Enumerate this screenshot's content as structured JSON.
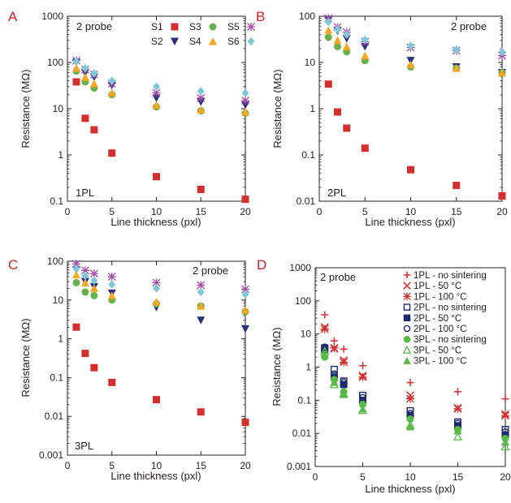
{
  "colors": {
    "S1": "#d32f2f",
    "S2": "#2b2f7a",
    "S3": "#6ab04c",
    "S4": "#f5a623",
    "S5": "#a64ca6",
    "S6": "#7fc8d8",
    "red": "#d32f2f",
    "navy": "#1f2a6e",
    "green": "#58b947"
  },
  "chart_data": [
    {
      "panel": "A",
      "type": "scatter",
      "annotation": "2 probe",
      "tag": "1PL",
      "xlabel": "Line thickness (pxl)",
      "ylabel": "Resistance (MΩ)",
      "xlim": [
        0,
        20
      ],
      "ylim": [
        0.1,
        1000
      ],
      "yscale": "log",
      "xticks": [
        "0",
        "5",
        "10",
        "15",
        "20"
      ],
      "yticks": [
        "0.1",
        "1",
        "10",
        "100",
        "1000"
      ],
      "x": [
        1,
        2,
        3,
        5,
        10,
        15,
        20
      ],
      "series": [
        {
          "name": "S1",
          "marker": "square",
          "values": [
            38,
            6.2,
            3.5,
            1.1,
            0.34,
            0.18,
            0.11
          ]
        },
        {
          "name": "S2",
          "marker": "triangle-down",
          "values": [
            100,
            60,
            48,
            32,
            17,
            14,
            12
          ]
        },
        {
          "name": "S3",
          "marker": "circle",
          "values": [
            65,
            38,
            28,
            20,
            11,
            9,
            8
          ]
        },
        {
          "name": "S4",
          "marker": "triangle-up",
          "values": [
            75,
            48,
            35,
            22,
            12,
            9.5,
            8.5
          ]
        },
        {
          "name": "S5",
          "marker": "asterisk",
          "values": [
            110,
            70,
            55,
            35,
            22,
            17,
            15
          ]
        },
        {
          "name": "S6",
          "marker": "diamond",
          "values": [
            105,
            75,
            58,
            40,
            30,
            24,
            22
          ]
        }
      ]
    },
    {
      "panel": "B",
      "type": "scatter",
      "annotation": "2 probe",
      "tag": "2PL",
      "xlabel": "Line thickness (pxl)",
      "ylabel": "Resistance (MΩ)",
      "xlim": [
        0,
        20
      ],
      "ylim": [
        0.01,
        100
      ],
      "yscale": "log",
      "xticks": [
        "0",
        "5",
        "10",
        "15",
        "20"
      ],
      "yticks": [
        "0.01",
        "0.1",
        "1",
        "10",
        "100"
      ],
      "x": [
        1,
        2,
        3,
        5,
        10,
        15,
        20
      ],
      "series": [
        {
          "name": "S1",
          "marker": "square",
          "values": [
            3.4,
            0.85,
            0.38,
            0.14,
            0.048,
            0.022,
            0.013
          ]
        },
        {
          "name": "S2",
          "marker": "triangle-down",
          "values": [
            85,
            48,
            33,
            22,
            11,
            8,
            6
          ]
        },
        {
          "name": "S3",
          "marker": "circle",
          "values": [
            35,
            22,
            17,
            11,
            8,
            7.5,
            6
          ]
        },
        {
          "name": "S4",
          "marker": "triangle-up",
          "values": [
            50,
            30,
            22,
            14,
            9,
            7.5,
            6
          ]
        },
        {
          "name": "S5",
          "marker": "asterisk",
          "values": [
            90,
            58,
            45,
            28,
            21,
            18,
            14
          ]
        },
        {
          "name": "S6",
          "marker": "diamond",
          "values": [
            75,
            52,
            40,
            31,
            23,
            19,
            17
          ]
        }
      ]
    },
    {
      "panel": "C",
      "type": "scatter",
      "annotation": "2 probe",
      "tag": "3PL",
      "xlabel": "Line thickness (pxl)",
      "ylabel": "Resistance (MΩ)",
      "xlim": [
        0,
        20
      ],
      "ylim": [
        0.001,
        100
      ],
      "yscale": "log",
      "xticks": [
        "0",
        "5",
        "10",
        "15",
        "20"
      ],
      "yticks": [
        "0.001",
        "0.01",
        "0.1",
        "1",
        "10",
        "100"
      ],
      "x": [
        1,
        2,
        3,
        5,
        10,
        15,
        20
      ],
      "series": [
        {
          "name": "S1",
          "marker": "square",
          "values": [
            2,
            0.42,
            0.18,
            0.075,
            0.027,
            0.013,
            0.007
          ]
        },
        {
          "name": "S2",
          "marker": "triangle-down",
          "values": [
            60,
            30,
            22,
            15,
            6.5,
            3,
            1.8
          ]
        },
        {
          "name": "S3",
          "marker": "circle",
          "values": [
            28,
            16,
            13,
            10,
            8,
            7,
            5
          ]
        },
        {
          "name": "S4",
          "marker": "triangle-up",
          "values": [
            45,
            28,
            20,
            13,
            9,
            7,
            5.5
          ]
        },
        {
          "name": "S5",
          "marker": "asterisk",
          "values": [
            85,
            58,
            48,
            40,
            28,
            24,
            19
          ]
        },
        {
          "name": "S6",
          "marker": "diamond",
          "values": [
            65,
            42,
            32,
            25,
            20,
            16,
            14
          ]
        }
      ]
    },
    {
      "panel": "D",
      "type": "scatter",
      "annotation": "2 probe",
      "xlabel": "Line thickness (pxl)",
      "ylabel": "Resistance (MΩ)",
      "xlim": [
        0,
        20
      ],
      "ylim": [
        0.001,
        1000
      ],
      "yscale": "log",
      "xticks": [
        "0",
        "5",
        "10",
        "15",
        "20"
      ],
      "yticks": [
        "0.001",
        "0.01",
        "0.1",
        "1",
        "10",
        "100",
        "1000"
      ],
      "x": [
        1,
        2,
        3,
        5,
        10,
        15,
        20
      ],
      "series": [
        {
          "name": "1PL - no sintering",
          "marker": "plus",
          "color": "red",
          "values": [
            38,
            6.2,
            3.5,
            1.1,
            0.34,
            0.18,
            0.11
          ]
        },
        {
          "name": "1PL - 50 °C",
          "marker": "x",
          "color": "red",
          "values": [
            16,
            3.6,
            1.6,
            0.55,
            0.14,
            0.058,
            0.038
          ]
        },
        {
          "name": "1PL - 100 °C",
          "marker": "asterisk",
          "color": "red",
          "values": [
            14,
            3.8,
            1.4,
            0.5,
            0.11,
            0.055,
            0.034
          ]
        },
        {
          "name": "2PL - no sintering",
          "marker": "square-open",
          "color": "navy",
          "values": [
            3.4,
            0.85,
            0.38,
            0.14,
            0.048,
            0.022,
            0.013
          ]
        },
        {
          "name": "2PL - 50 °C",
          "marker": "square",
          "color": "navy",
          "values": [
            3.8,
            0.5,
            0.3,
            0.1,
            0.035,
            0.017,
            0.009
          ]
        },
        {
          "name": "2PL - 100 °C",
          "marker": "circle-open",
          "color": "navy",
          "values": [
            4,
            0.62,
            0.35,
            0.12,
            0.04,
            0.02,
            0.011
          ]
        },
        {
          "name": "3PL - no sintering",
          "marker": "circle",
          "color": "green",
          "values": [
            2,
            0.42,
            0.18,
            0.075,
            0.027,
            0.013,
            0.007
          ]
        },
        {
          "name": "3PL - 50 °C",
          "marker": "triangle-up-open",
          "color": "green",
          "values": [
            3,
            0.3,
            0.16,
            0.05,
            0.018,
            0.008,
            0.004
          ]
        },
        {
          "name": "3PL - 100 °C",
          "marker": "triangle-up",
          "color": "green",
          "values": [
            2.5,
            0.35,
            0.15,
            0.055,
            0.016,
            0.012,
            0.0055
          ]
        }
      ]
    }
  ]
}
